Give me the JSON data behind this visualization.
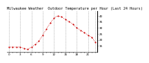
{
  "title": "Milwaukee Weather  Outdoor Temperature per Hour (Last 24 Hours)",
  "hours": [
    0,
    1,
    2,
    3,
    4,
    5,
    6,
    7,
    8,
    9,
    10,
    11,
    12,
    13,
    14,
    15,
    16,
    17,
    18,
    19,
    20,
    21,
    22,
    23
  ],
  "temps": [
    14,
    14,
    14,
    14,
    13,
    12,
    14,
    16,
    19,
    24,
    29,
    34,
    38,
    40,
    39,
    37,
    35,
    33,
    30,
    28,
    26,
    24,
    22,
    18
  ],
  "line_color": "#cc0000",
  "marker_color": "#cc0000",
  "bg_color": "#ffffff",
  "grid_color": "#888888",
  "title_color": "#000000",
  "ylim": [
    10,
    44
  ],
  "yticks": [
    15,
    20,
    25,
    30,
    35,
    40
  ],
  "grid_hours": [
    0,
    3,
    6,
    9,
    12,
    15,
    18,
    21,
    23
  ],
  "title_fontsize": 3.8,
  "tick_fontsize": 3.0,
  "line_width": 0.6,
  "marker_size": 1.2
}
